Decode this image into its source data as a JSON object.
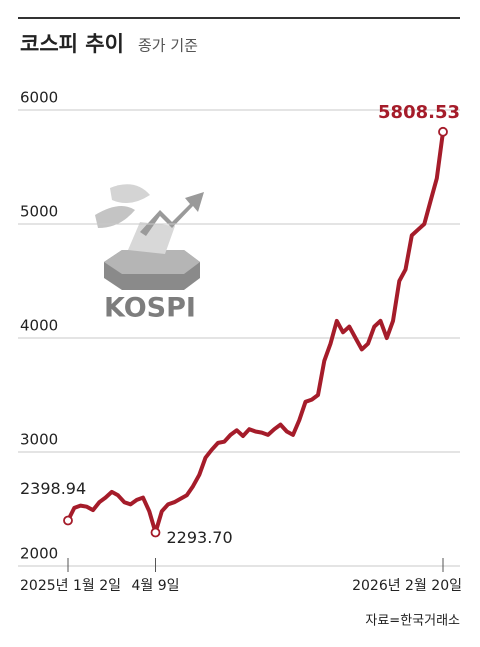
{
  "chart_data": {
    "type": "line",
    "title": "코스피 추이",
    "subtitle": "종가 기준",
    "source": "자료=한국거래소",
    "logo_text": "KOSPI",
    "categories": [
      "2025년 1월 2일",
      null,
      null,
      null,
      null,
      null,
      null,
      null,
      null,
      null,
      null,
      null,
      null,
      null,
      "4월 9일",
      null,
      null,
      null,
      null,
      null,
      null,
      null,
      null,
      null,
      null,
      null,
      null,
      null,
      null,
      null,
      null,
      null,
      null,
      null,
      null,
      null,
      null,
      null,
      null,
      null,
      null,
      null,
      null,
      null,
      null,
      null,
      null,
      null,
      null,
      null,
      null,
      null,
      null,
      null,
      null,
      null,
      null,
      null,
      null,
      null,
      "2026년 2월 20일"
    ],
    "series": [
      {
        "name": "코스피",
        "color": "#a51c2a",
        "values": [
          2398.94,
          2510,
          2530,
          2520,
          2490,
          2560,
          2600,
          2650,
          2620,
          2560,
          2540,
          2580,
          2600,
          2480,
          2293.7,
          2480,
          2540,
          2560,
          2590,
          2620,
          2700,
          2800,
          2950,
          3020,
          3080,
          3090,
          3150,
          3190,
          3140,
          3200,
          3180,
          3170,
          3150,
          3200,
          3240,
          3180,
          3150,
          3280,
          3440,
          3460,
          3500,
          3800,
          3950,
          4150,
          4050,
          4100,
          4000,
          3900,
          3950,
          4100,
          4150,
          4000,
          4150,
          4500,
          4600,
          4900,
          4950,
          5000,
          5200,
          5400,
          5808.53
        ],
        "value_labels": [
          "2398.94",
          null,
          null,
          null,
          null,
          null,
          null,
          null,
          null,
          null,
          null,
          null,
          null,
          null,
          "2293.70",
          null,
          null,
          null,
          null,
          null,
          null,
          null,
          null,
          null,
          null,
          null,
          null,
          null,
          null,
          null,
          null,
          null,
          null,
          null,
          null,
          null,
          null,
          null,
          null,
          null,
          null,
          null,
          null,
          null,
          null,
          null,
          null,
          null,
          null,
          null,
          null,
          null,
          null,
          null,
          null,
          null,
          null,
          null,
          null,
          null,
          "5808.53"
        ]
      }
    ],
    "ylim": [
      2000,
      6000
    ],
    "yticks": [
      2000,
      3000,
      4000,
      5000,
      6000
    ],
    "grid": true
  }
}
